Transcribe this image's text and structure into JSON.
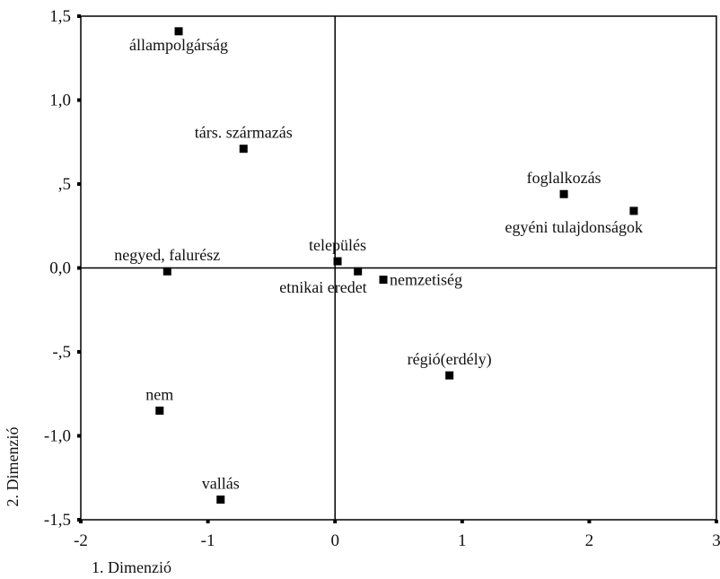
{
  "chart_data": {
    "type": "scatter",
    "title": "",
    "xlabel": "1. Dimenzió",
    "ylabel": "2. Dimenzió",
    "xlim": [
      -2,
      3
    ],
    "ylim": [
      -1.5,
      1.5
    ],
    "grid": false,
    "reference_lines": {
      "x": 0,
      "y": 0
    },
    "x_ticks": [
      -2,
      -1,
      0,
      1,
      2,
      3
    ],
    "x_tick_labels": [
      "-2",
      "-1",
      "0",
      "1",
      "2",
      "3"
    ],
    "y_ticks": [
      1.5,
      1.0,
      0.5,
      0.0,
      -0.5,
      -1.0,
      -1.5
    ],
    "y_tick_labels": [
      "1,5",
      "1,0",
      ",5",
      "0,0",
      "-,5",
      "-1,0",
      "-1,5"
    ],
    "points": [
      {
        "label": "állampolgárság",
        "x": -1.23,
        "y": 1.41,
        "label_pos": "below"
      },
      {
        "label": "társ. származás",
        "x": -0.72,
        "y": 0.71,
        "label_pos": "above"
      },
      {
        "label": "foglalkozás",
        "x": 1.8,
        "y": 0.44,
        "label_pos": "above"
      },
      {
        "label": "egyéni tulajdonságok",
        "x": 2.35,
        "y": 0.34,
        "label_pos": "below-left"
      },
      {
        "label": "negyed, falurész",
        "x": -1.32,
        "y": -0.02,
        "label_pos": "above"
      },
      {
        "label": "település",
        "x": 0.02,
        "y": 0.04,
        "label_pos": "above"
      },
      {
        "label": "etnikai eredet",
        "x": 0.18,
        "y": -0.02,
        "label_pos": "below-left"
      },
      {
        "label": "nemzetiség",
        "x": 0.38,
        "y": -0.07,
        "label_pos": "right"
      },
      {
        "label": "régió(erdély)",
        "x": 0.9,
        "y": -0.64,
        "label_pos": "above"
      },
      {
        "label": "nem",
        "x": -1.38,
        "y": -0.85,
        "label_pos": "above"
      },
      {
        "label": "vallás",
        "x": -0.9,
        "y": -1.38,
        "label_pos": "above"
      }
    ]
  }
}
